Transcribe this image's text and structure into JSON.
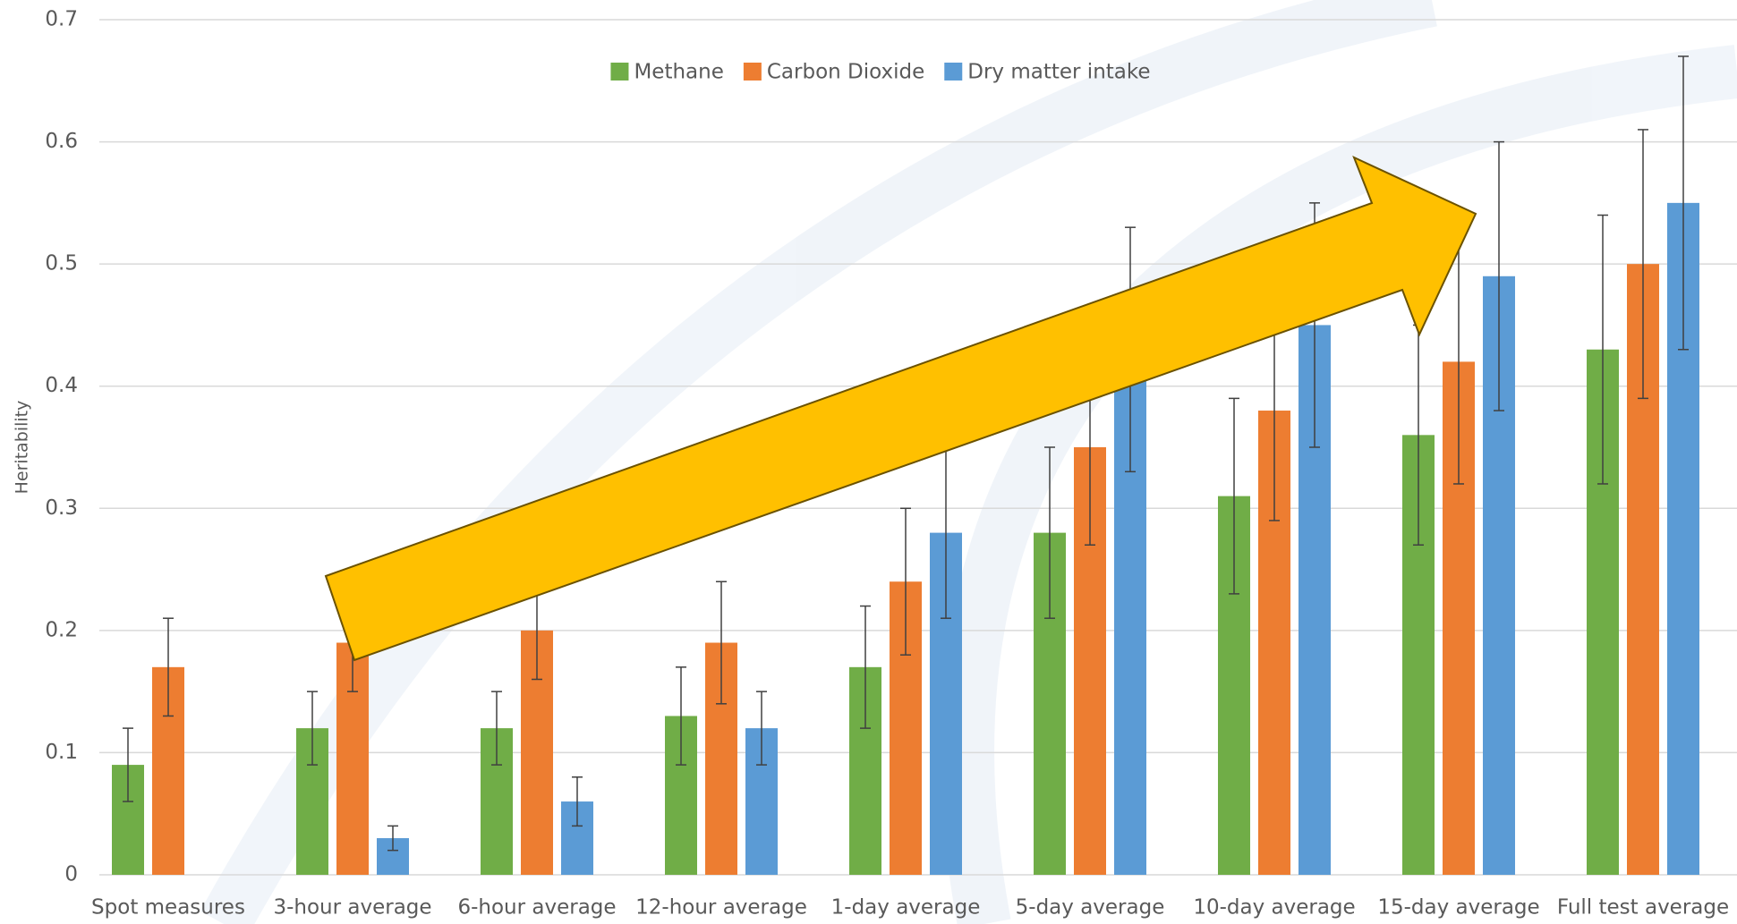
{
  "chart_data": {
    "type": "bar",
    "y_label": "Heritability",
    "categories": [
      "Spot measures",
      "3-hour average",
      "6-hour average",
      "12-hour average",
      "1-day average",
      "5-day average",
      "10-day average",
      "15-day average",
      "Full test average"
    ],
    "series": [
      {
        "name": "Methane",
        "color": "#70ad47",
        "values": [
          0.09,
          0.12,
          0.12,
          0.13,
          0.17,
          0.28,
          0.31,
          0.36,
          0.43
        ],
        "errors": [
          0.03,
          0.03,
          0.03,
          0.04,
          0.05,
          0.07,
          0.08,
          0.09,
          0.11
        ]
      },
      {
        "name": "Carbon Dioxide",
        "color": "#ed7d31",
        "values": [
          0.17,
          0.19,
          0.2,
          0.19,
          0.24,
          0.35,
          0.38,
          0.42,
          0.5
        ],
        "errors": [
          0.04,
          0.04,
          0.04,
          0.05,
          0.06,
          0.08,
          0.09,
          0.1,
          0.11
        ]
      },
      {
        "name": "Dry matter intake",
        "color": "#5b9bd5",
        "values": [
          null,
          0.03,
          0.06,
          0.12,
          0.28,
          0.43,
          0.45,
          0.49,
          0.55
        ],
        "errors": [
          null,
          0.01,
          0.02,
          0.03,
          0.07,
          0.1,
          0.1,
          0.11,
          0.12
        ]
      }
    ],
    "ylim": [
      0,
      0.7
    ],
    "yticks": [
      0,
      0.1,
      0.2,
      0.3,
      0.4,
      0.5,
      0.6,
      0.7
    ],
    "grid": true,
    "legend": "top"
  }
}
